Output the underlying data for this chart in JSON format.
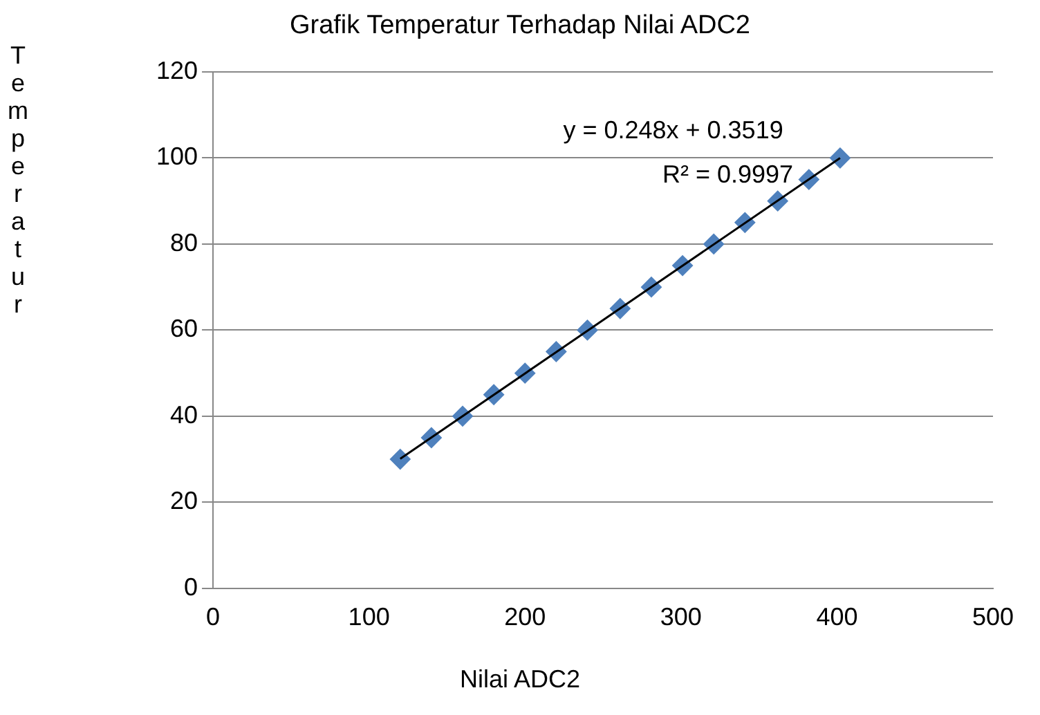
{
  "chart_data": {
    "type": "scatter",
    "title": "Grafik Temperatur Terhadap Nilai ADC2",
    "xlabel": "Nilai ADC2",
    "ylabel": "Temperatur",
    "series": [
      {
        "color": "#4f81bd",
        "marker": "diamond",
        "x": [
          120,
          140,
          160,
          180,
          200,
          220,
          240,
          261,
          281,
          301,
          321,
          341,
          362,
          382,
          402
        ],
        "values": [
          30,
          35,
          40,
          45,
          50,
          55,
          60,
          65,
          70,
          75,
          80,
          85,
          90,
          95,
          100
        ]
      },
      {
        "type": "line",
        "color": "#000000",
        "marker": "none",
        "x": [
          120,
          402
        ],
        "values": [
          30.1,
          100.0
        ]
      }
    ],
    "annotations": [
      "y = 0.248x + 0.3519",
      "R² = 0.9997"
    ],
    "xlim": [
      0,
      500
    ],
    "xticks": [
      0,
      100,
      200,
      300,
      400,
      500
    ],
    "ylim": [
      0,
      120
    ],
    "yticks": [
      0,
      20,
      40,
      60,
      80,
      100,
      120
    ],
    "grid": "y",
    "legend": false
  }
}
